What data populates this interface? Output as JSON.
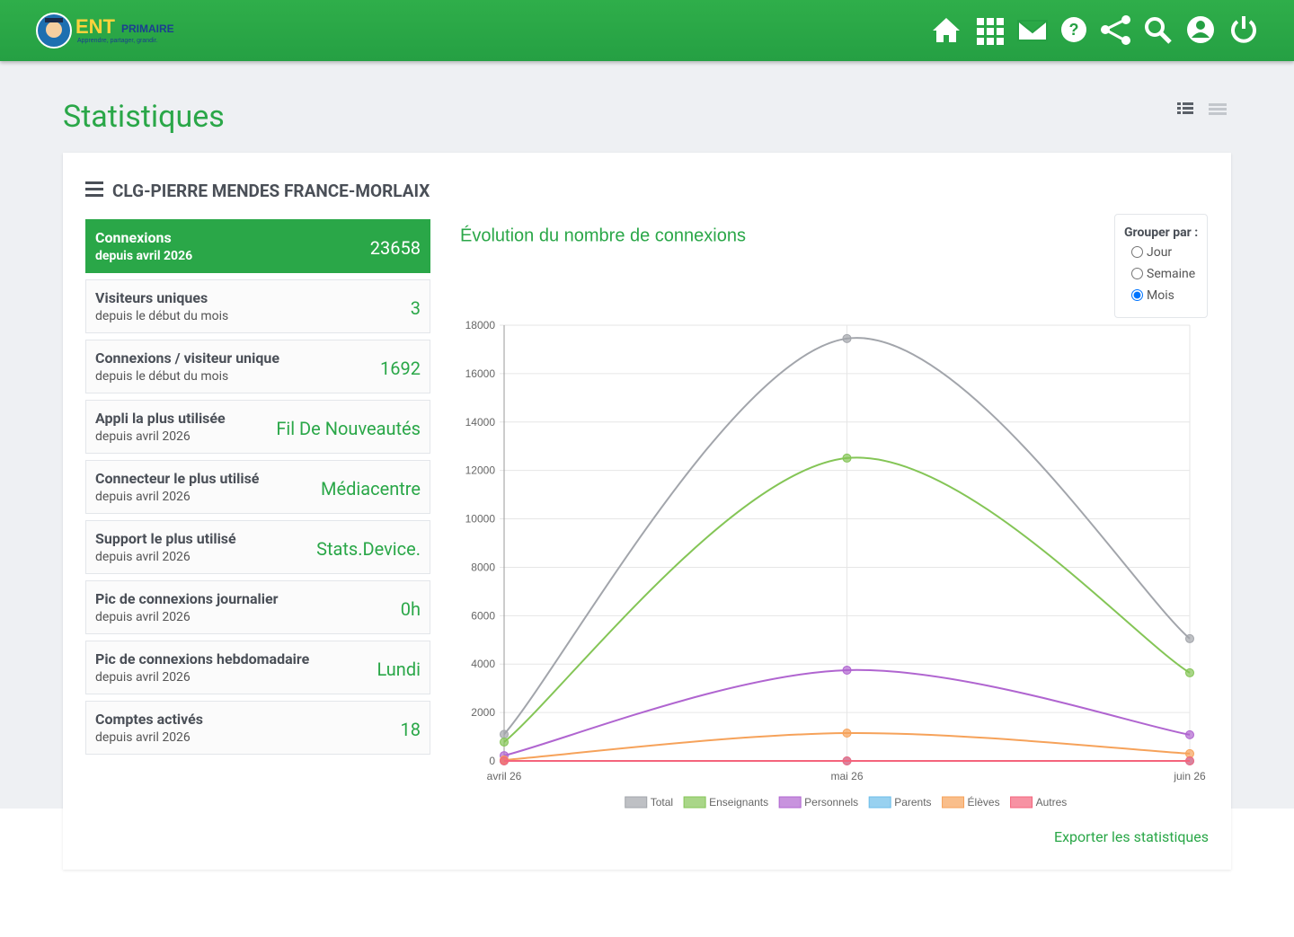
{
  "header": {
    "logo_title": "ENT",
    "logo_subtitle": "PRIMAIRE",
    "tagline": "Apprendre, partager, grandir."
  },
  "page_title": "Statistiques",
  "card_title": "CLG-PIERRE MENDES FRANCE-MORLAIX",
  "stats": [
    {
      "label": "Connexions",
      "sublabel": "depuis avril 2026",
      "value": 23658
    },
    {
      "label": "Visiteurs uniques",
      "sublabel": "depuis le début du mois",
      "value": 3
    },
    {
      "label": "Connexions / visiteur unique",
      "sublabel": "depuis le début du mois",
      "value": 1692
    },
    {
      "label": "Appli la plus utilisée",
      "sublabel": "depuis avril 2026",
      "value": "Fil De Nouveautés"
    },
    {
      "label": "Connecteur le plus utilisé",
      "sublabel": "depuis avril 2026",
      "value": "Médiacentre"
    },
    {
      "label": "Support le plus utilisé",
      "sublabel": "depuis avril 2026",
      "value": "Stats.Device."
    },
    {
      "label": "Pic de connexions journalier",
      "sublabel": "depuis avril 2026",
      "value": "0h"
    },
    {
      "label": "Pic de connexions hebdomadaire",
      "sublabel": "depuis avril 2026",
      "value": "Lundi"
    },
    {
      "label": "Comptes activés",
      "sublabel": "depuis avril 2026",
      "value": 18
    }
  ],
  "group_by": {
    "label": "Grouper par :",
    "options": [
      "Jour",
      "Semaine",
      "Mois"
    ],
    "selected": 2
  },
  "export": "Exporter les statistiques",
  "chart_data": {
    "type": "line",
    "title": "Évolution du nombre de connexions",
    "categories": [
      "avril 26",
      "mai 26",
      "juin 26"
    ],
    "series": [
      {
        "name": "Total",
        "color": "#a2a5ab",
        "values": [
          1100,
          17450,
          5050
        ]
      },
      {
        "name": "Enseignants",
        "color": "#84c556",
        "values": [
          780,
          12510,
          3640
        ]
      },
      {
        "name": "Personnels",
        "color": "#b065d0",
        "values": [
          220,
          3750,
          1080
        ]
      },
      {
        "name": "Parents",
        "color": "#6cbdea",
        "values": [
          0,
          0,
          0
        ]
      },
      {
        "name": "Élèves",
        "color": "#f6a25a",
        "values": [
          40,
          1150,
          300
        ]
      },
      {
        "name": "Autres",
        "color": "#f4647c",
        "values": [
          0,
          0,
          0
        ]
      }
    ],
    "ylim": [
      0,
      18000
    ],
    "yticks": [
      0,
      2000,
      4000,
      6000,
      8000,
      10000,
      12000,
      14000,
      16000,
      18000
    ],
    "grid": true,
    "legend": "bottom"
  }
}
